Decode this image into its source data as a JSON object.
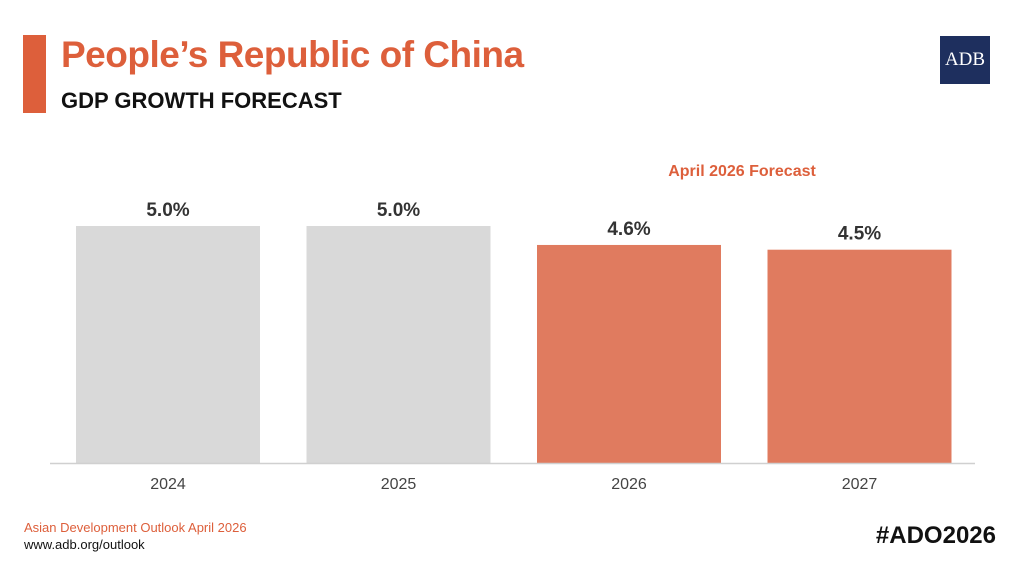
{
  "header": {
    "title": "People’s Republic of China",
    "subtitle": "GDP GROWTH FORECAST",
    "logo_text": "ADB"
  },
  "footer": {
    "source": "Asian Development Outlook April 2026",
    "url": "www.adb.org/outlook",
    "hashtag": "#ADO2026"
  },
  "chart_data": {
    "type": "bar",
    "title": "",
    "annotation": "April 2026 Forecast",
    "categories": [
      "2024",
      "2025",
      "2026",
      "2027"
    ],
    "values": [
      5.0,
      5.0,
      4.6,
      4.5
    ],
    "data_labels": [
      "5.0%",
      "5.0%",
      "4.6%",
      "4.5%"
    ],
    "forecast": [
      false,
      false,
      true,
      true
    ],
    "ylim": [
      0,
      5.3
    ],
    "grid": false,
    "colors": {
      "actual": "#d9d9d9",
      "forecast": "#e07b5f",
      "accent": "#dd5f3b"
    }
  }
}
